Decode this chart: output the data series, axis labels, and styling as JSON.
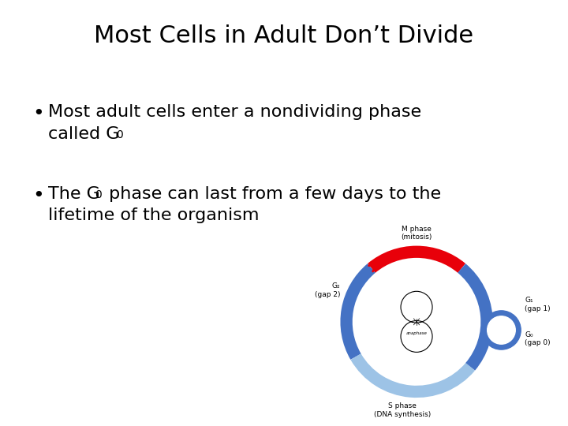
{
  "title": "Most Cells in Adult Don’t Divide",
  "bullet1_line1": "Most adult cells enter a nondividing phase",
  "bullet1_line2_pre": "called G",
  "bullet1_line2_sub": "0",
  "bullet2_line1_pre": "The G",
  "bullet2_line1_sub": "0",
  "bullet2_line1_post": " phase can last from a few days to the",
  "bullet2_line2": "lifetime of the organism",
  "bg_color": "#ffffff",
  "title_color": "#000000",
  "text_color": "#000000",
  "circle_blue": "#4472C4",
  "circle_blue_light": "#9DC3E6",
  "circle_red": "#E8000A",
  "title_fontsize": 22,
  "bullet_fontsize": 16,
  "label_fontsize": 6.5
}
